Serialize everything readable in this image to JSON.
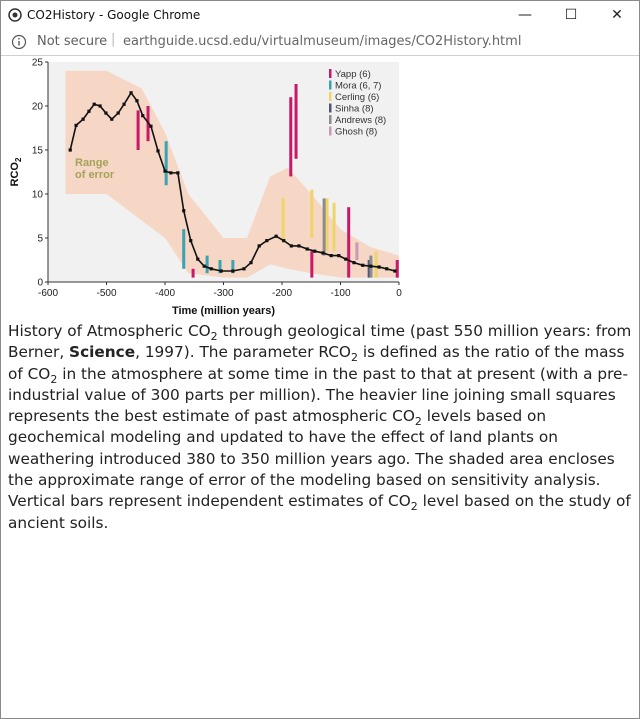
{
  "window": {
    "title": "CO2History - Google Chrome",
    "security": "Not secure",
    "url": "earthguide.ucsd.edu/virtualmuseum/images/CO2History.html"
  },
  "chart_data": {
    "type": "line",
    "xlabel": "Time (million years)",
    "ylabel": "RCO",
    "ylabel_sub": "2",
    "xlim": [
      -600,
      0
    ],
    "ylim": [
      0,
      25
    ],
    "xticks": [
      -600,
      -500,
      -400,
      -300,
      -200,
      -100,
      0
    ],
    "yticks": [
      0,
      5,
      10,
      15,
      20,
      25
    ],
    "annotation": [
      "Range",
      "of error"
    ],
    "band": {
      "color": "#f6d6c4",
      "x": [
        -570,
        -500,
        -440,
        -400,
        -360,
        -300,
        -260,
        -220,
        -190,
        -150,
        -100,
        -50,
        0
      ],
      "upper": [
        24,
        24,
        22,
        17,
        10,
        5,
        5,
        12,
        13,
        10,
        6,
        4,
        3
      ],
      "lower": [
        10,
        10,
        7,
        5,
        1,
        0.5,
        0.5,
        2,
        1.5,
        1,
        0.5,
        0.5,
        0.5
      ]
    },
    "model": {
      "color": "#111111",
      "x": [
        -562,
        -552,
        -540,
        -530,
        -521,
        -511,
        -501,
        -491,
        -480,
        -470,
        -458,
        -448,
        -438,
        -424,
        -412,
        -400,
        -390,
        -378,
        -368,
        -356,
        -344,
        -333,
        -321,
        -304,
        -284,
        -265,
        -253,
        -239,
        -226,
        -210,
        -197,
        -184,
        -171,
        -157,
        -144,
        -130,
        -116,
        -103,
        -91,
        -77,
        -62,
        -48,
        -34,
        -21,
        -7
      ],
      "values": [
        15,
        17.8,
        18.5,
        19.4,
        20.2,
        20,
        19.2,
        18.5,
        19.2,
        20.2,
        21.5,
        20.6,
        18.9,
        17.7,
        14.9,
        12.6,
        12.4,
        12.4,
        8.1,
        4.7,
        2.6,
        1.8,
        1.5,
        1.25,
        1.25,
        1.5,
        2.2,
        4.1,
        4.7,
        5.2,
        4.7,
        4.1,
        4.1,
        3.75,
        3.5,
        3.3,
        3,
        3,
        2.6,
        2.2,
        1.9,
        1.8,
        1.7,
        1.5,
        1.25
      ]
    },
    "bars": [
      {
        "name": "Yapp (6)",
        "color": "#c8186a",
        "x": [
          -446,
          -429,
          -352,
          -185,
          -176,
          -149,
          -86,
          -3
        ],
        "low": [
          15,
          16,
          0.5,
          12,
          14,
          0.5,
          0.5,
          0.5
        ],
        "high": [
          19.5,
          20,
          1.5,
          21,
          22.5,
          3.5,
          8.5,
          2.5
        ]
      },
      {
        "name": "Mora (6, 7)",
        "color": "#3aa3b3",
        "x": [
          -398,
          -368,
          -328,
          -306,
          -284
        ],
        "low": [
          11,
          1.5,
          1,
          1,
          1
        ],
        "high": [
          16,
          6,
          3,
          2.5,
          2.5
        ]
      },
      {
        "name": "Cerling (6)",
        "color": "#eed56a",
        "x": [
          -198,
          -149,
          -123,
          -111,
          -39
        ],
        "low": [
          4.5,
          5,
          3.5,
          3.5,
          0.5
        ],
        "high": [
          9.5,
          10.5,
          9.5,
          9,
          3.5
        ]
      },
      {
        "name": "Sinha (8)",
        "color": "#4f5577",
        "x": [
          -51
        ],
        "low": [
          0.5
        ],
        "high": [
          2.5
        ]
      },
      {
        "name": "Andrews (8)",
        "color": "#8c8c8c",
        "x": [
          -128,
          -48
        ],
        "low": [
          3,
          0.5
        ],
        "high": [
          9.5,
          3
        ]
      },
      {
        "name": "Ghosh (8)",
        "color": "#c79ab8",
        "x": [
          -72
        ],
        "low": [
          2.5
        ],
        "high": [
          4.5
        ]
      }
    ]
  },
  "caption": [
    {
      "text": "History of Atmospheric CO"
    },
    {
      "text": "2",
      "sub": true
    },
    {
      "text": " through geological time (past 550 million years: from Berner, "
    },
    {
      "text": "Science",
      "bold": true
    },
    {
      "text": ", 1997). The parameter RCO"
    },
    {
      "text": "2",
      "sub": true
    },
    {
      "text": " is defined as the ratio of the mass of CO"
    },
    {
      "text": "2",
      "sub": true
    },
    {
      "text": " in the atmosphere at some time in the past to that at present (with a pre-industrial value of 300 parts per million). The heavier line joining small squares represents the best estimate of past atmospheric CO"
    },
    {
      "text": "2",
      "sub": true
    },
    {
      "text": " levels based on geochemical modeling and updated to have the effect of land plants on weathering introduced 380 to 350 million years ago. The shaded area encloses the approximate range of error of the modeling based on sensitivity analysis. Vertical bars represent independent estimates of CO"
    },
    {
      "text": "2",
      "sub": true
    },
    {
      "text": " level based on the study of ancient soils."
    }
  ]
}
